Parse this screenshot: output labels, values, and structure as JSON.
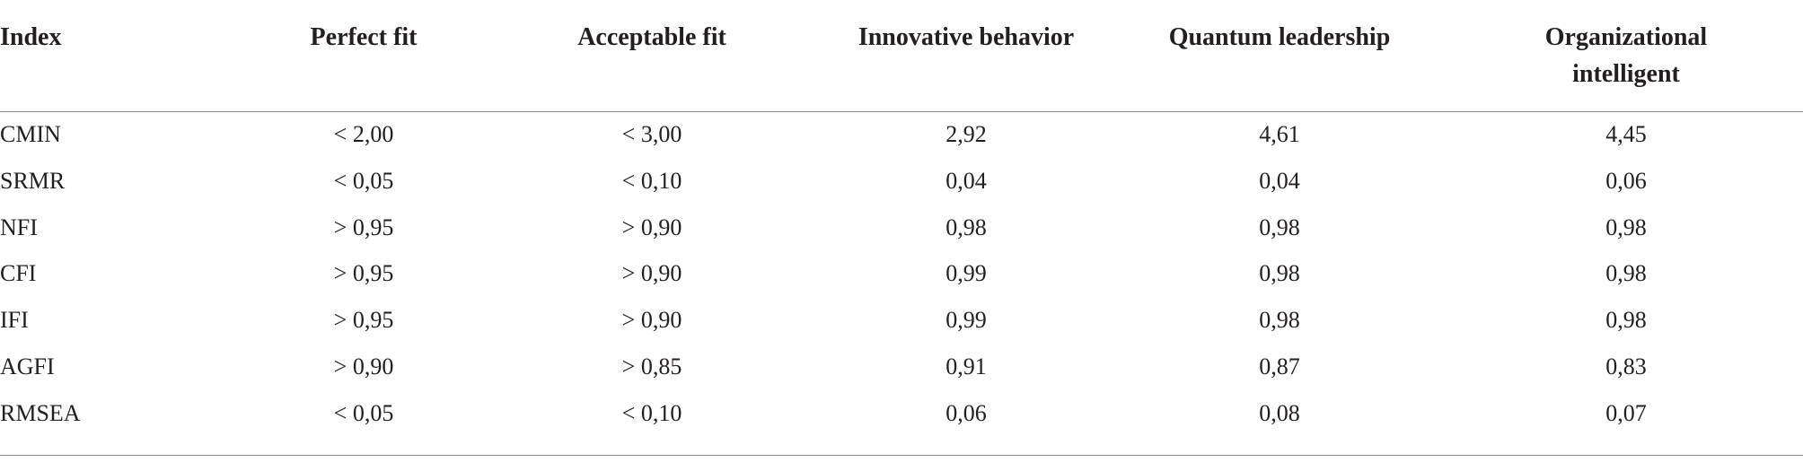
{
  "table": {
    "header": [
      "Index",
      "Perfect fit",
      "Acceptable fit",
      "Innovative behavior",
      "Quantum leadership",
      "Organizational intelligent"
    ],
    "rows": [
      [
        "CMIN",
        "< 2,00",
        "< 3,00",
        "2,92",
        "4,61",
        "4,45"
      ],
      [
        "SRMR",
        "< 0,05",
        "< 0,10",
        "0,04",
        "0,04",
        "0,06"
      ],
      [
        "NFI",
        "> 0,95",
        "> 0,90",
        "0,98",
        "0,98",
        "0,98"
      ],
      [
        "CFI",
        "> 0,95",
        "> 0,90",
        "0,99",
        "0,98",
        "0,98"
      ],
      [
        "IFI",
        "> 0,95",
        "> 0,90",
        "0,99",
        "0,98",
        "0,98"
      ],
      [
        "AGFI",
        "> 0,90",
        "> 0,85",
        "0,91",
        "0,87",
        "0,83"
      ],
      [
        "RMSEA",
        "< 0,05",
        "< 0,10",
        "0,06",
        "0,08",
        "0,07"
      ]
    ]
  }
}
